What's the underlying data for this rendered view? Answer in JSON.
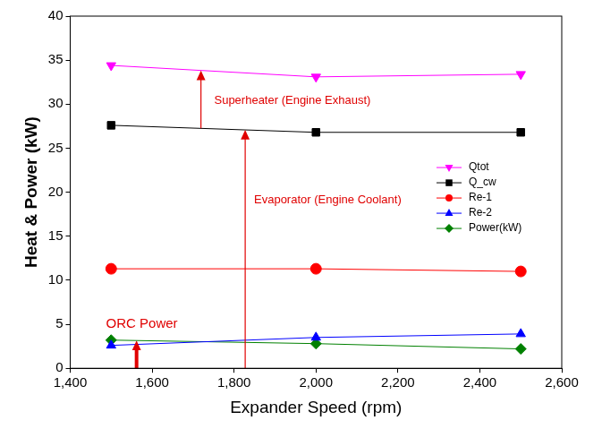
{
  "chart_data": {
    "type": "line",
    "x_label": "Expander Speed (rpm)",
    "y_label": "Heat & Power (kW)",
    "x": [
      1500,
      2000,
      2500
    ],
    "series": [
      {
        "name": "Qtot",
        "color": "#ff00ff",
        "marker": "triangle_down",
        "values": [
          34.4,
          33.1,
          33.4
        ]
      },
      {
        "name": "Q_cw",
        "color": "#000000",
        "marker": "square",
        "values": [
          27.6,
          26.8,
          26.8
        ]
      },
      {
        "name": "Re-1",
        "color": "#ff0000",
        "marker": "circle",
        "values": [
          11.3,
          11.3,
          11.0
        ]
      },
      {
        "name": "Re-2",
        "color": "#0000ff",
        "marker": "triangle",
        "values": [
          2.6,
          3.5,
          3.9
        ]
      },
      {
        "name": "Power(kW)",
        "color": "#008000",
        "marker": "diamond",
        "values": [
          3.2,
          2.8,
          2.2
        ]
      }
    ],
    "xlim": [
      1400,
      2600
    ],
    "xticks": [
      1400,
      1600,
      1800,
      2000,
      2200,
      2400,
      2600
    ],
    "ylim": [
      0,
      40
    ],
    "yticks": [
      0,
      5,
      10,
      15,
      20,
      25,
      30,
      35,
      40
    ],
    "grid": false,
    "legend": "right",
    "annotations": [
      "Superheater (Engine Exhaust)",
      "Evaporator (Engine Coolant)",
      "ORC Power"
    ]
  }
}
